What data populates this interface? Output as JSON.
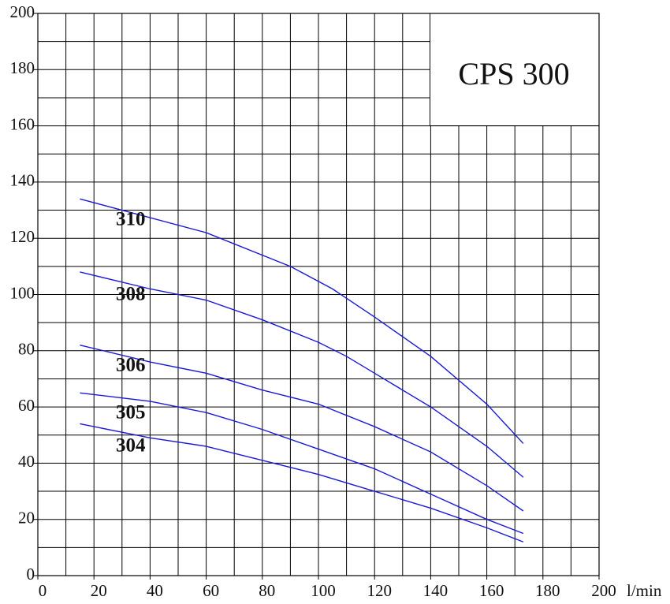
{
  "chart_data": {
    "type": "line",
    "title": "CPS 300",
    "x_label": "l/min",
    "xlim": [
      0,
      200
    ],
    "ylim": [
      0,
      200
    ],
    "xticks": [
      0,
      20,
      40,
      60,
      80,
      100,
      120,
      140,
      160,
      180,
      200
    ],
    "yticks": [
      0,
      20,
      40,
      60,
      80,
      100,
      120,
      140,
      160,
      180,
      200
    ],
    "xgrid": [
      0,
      10,
      20,
      30,
      40,
      50,
      60,
      70,
      80,
      90,
      100,
      110,
      120,
      130,
      140,
      150,
      160,
      170,
      180,
      190,
      200
    ],
    "ygrid": [
      0,
      10,
      20,
      30,
      40,
      50,
      60,
      70,
      80,
      90,
      100,
      110,
      120,
      130,
      140,
      150,
      160,
      170,
      180,
      190,
      200
    ],
    "grid": true,
    "color": "#1a1ad6",
    "series": [
      {
        "name": "310",
        "x": [
          15,
          60,
          90,
          105,
          120,
          140,
          160,
          173
        ],
        "values": [
          134,
          122,
          110,
          102,
          92,
          78,
          61,
          47
        ]
      },
      {
        "name": "308",
        "x": [
          15,
          40,
          60,
          80,
          100,
          110,
          120,
          140,
          160,
          173
        ],
        "values": [
          108,
          102,
          98,
          91,
          83,
          78,
          72,
          60,
          46,
          35
        ]
      },
      {
        "name": "306",
        "x": [
          15,
          40,
          60,
          80,
          100,
          120,
          140,
          160,
          173
        ],
        "values": [
          82,
          76,
          72,
          66,
          61,
          53,
          44,
          32,
          23
        ]
      },
      {
        "name": "305",
        "x": [
          15,
          40,
          60,
          80,
          100,
          120,
          140,
          160,
          173
        ],
        "values": [
          65,
          62,
          58,
          52,
          45,
          38,
          29,
          20,
          15
        ]
      },
      {
        "name": "304",
        "x": [
          15,
          40,
          60,
          80,
          100,
          120,
          140,
          160,
          173
        ],
        "values": [
          54,
          49,
          46,
          41,
          36,
          30,
          24,
          17,
          12
        ]
      }
    ]
  }
}
